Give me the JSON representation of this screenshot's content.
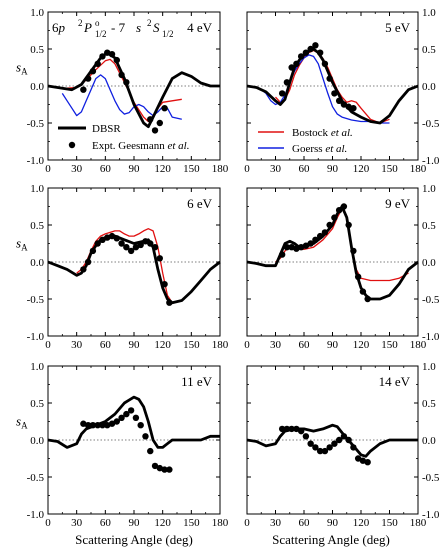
{
  "colors": {
    "dbsr": "#000000",
    "bostock": "#e01010",
    "goerss": "#1020e0",
    "expt": "#000000",
    "zero_line": "#555555"
  },
  "figure": {
    "transition": {
      "part_a": "6",
      "part_b": "p",
      "part_c": "2",
      "part_d": "P",
      "part_e": "o",
      "part_f": "1/2",
      "part_g": "- 7",
      "part_h": "s",
      "part_i": "2",
      "part_j": "S",
      "part_k": "1/2"
    },
    "xlabel": "Scattering Angle (deg)",
    "ylabel_main": "s",
    "ylabel_sub": "A",
    "legend": {
      "dbsr": "DBSR",
      "expt": "Expt. Geesmann",
      "expt_etal": "et al.",
      "bostock": "Bostock",
      "bostock_etal": "et al.",
      "goerss": "Goerss",
      "goerss_etal": "et al."
    }
  },
  "chart_data": [
    {
      "type": "line",
      "energy_label": "4 eV",
      "xlim": [
        0,
        180
      ],
      "ylim": [
        -1.0,
        1.0
      ],
      "xticks": [
        "0",
        "30",
        "60",
        "90",
        "120",
        "150",
        "180"
      ],
      "yticks": [
        "-1.0",
        "-0.5",
        "0.0",
        "0.5",
        "1.0"
      ],
      "series": [
        {
          "name": "DBSR",
          "x": [
            0,
            15,
            25,
            35,
            45,
            55,
            62,
            70,
            80,
            90,
            100,
            105,
            110,
            120,
            130,
            140,
            150,
            160,
            170,
            180
          ],
          "y": [
            0,
            -0.03,
            -0.05,
            0.02,
            0.2,
            0.38,
            0.45,
            0.38,
            0.1,
            -0.25,
            -0.5,
            -0.55,
            -0.42,
            -0.15,
            0.1,
            0.18,
            0.13,
            0.04,
            0.0,
            0.0
          ]
        },
        {
          "name": "Bostock et al.",
          "x": [
            20,
            30,
            40,
            50,
            60,
            65,
            70,
            80,
            90,
            100,
            105,
            110,
            115,
            120,
            130,
            140
          ],
          "y": [
            -0.03,
            -0.02,
            0.08,
            0.22,
            0.34,
            0.36,
            0.3,
            0.05,
            -0.22,
            -0.42,
            -0.48,
            -0.4,
            -0.3,
            -0.22,
            -0.2,
            -0.18
          ]
        },
        {
          "name": "Goerss et al.",
          "x": [
            15,
            20,
            25,
            30,
            35,
            40,
            45,
            50,
            55,
            60,
            65,
            70,
            75,
            80,
            85,
            90,
            95,
            100,
            105,
            110,
            115,
            120,
            125,
            130,
            140
          ],
          "y": [
            -0.1,
            -0.2,
            -0.3,
            -0.4,
            -0.35,
            -0.2,
            -0.05,
            0.1,
            0.15,
            0.1,
            -0.05,
            -0.2,
            -0.32,
            -0.38,
            -0.36,
            -0.28,
            -0.25,
            -0.28,
            -0.35,
            -0.4,
            -0.35,
            -0.28,
            -0.3,
            -0.42,
            -0.45
          ]
        },
        {
          "name": "Expt. Geesmann et al.",
          "points": true,
          "x": [
            37,
            42,
            47,
            52,
            57,
            62,
            67,
            72,
            77,
            82,
            107,
            112,
            117,
            122
          ],
          "y": [
            -0.05,
            0.1,
            0.2,
            0.3,
            0.4,
            0.45,
            0.43,
            0.35,
            0.15,
            0.05,
            -0.45,
            -0.6,
            -0.5,
            -0.3
          ]
        }
      ]
    },
    {
      "type": "line",
      "energy_label": "5 eV",
      "xlim": [
        0,
        180
      ],
      "ylim": [
        -1.0,
        1.0
      ],
      "xticks": [
        "0",
        "30",
        "60",
        "90",
        "120",
        "150",
        "180"
      ],
      "yticks": [
        "-1.0",
        "-0.5",
        "0.0",
        "0.5",
        "1.0"
      ],
      "series": [
        {
          "name": "DBSR",
          "x": [
            0,
            10,
            20,
            30,
            35,
            40,
            45,
            50,
            55,
            60,
            65,
            70,
            75,
            80,
            85,
            90,
            100,
            110,
            120,
            130,
            140,
            150,
            160,
            170,
            180
          ],
          "y": [
            0,
            -0.02,
            -0.08,
            -0.2,
            -0.25,
            -0.18,
            0.05,
            0.25,
            0.35,
            0.42,
            0.47,
            0.5,
            0.45,
            0.35,
            0.2,
            0.05,
            -0.2,
            -0.35,
            -0.42,
            -0.48,
            -0.5,
            -0.4,
            -0.2,
            -0.05,
            0.0
          ]
        },
        {
          "name": "Bostock et al.",
          "x": [
            30,
            35,
            40,
            45,
            50,
            55,
            60,
            65,
            70,
            75,
            80,
            85,
            90,
            95,
            100,
            105,
            110,
            115,
            120,
            130,
            140,
            150
          ],
          "y": [
            -0.15,
            -0.22,
            -0.18,
            -0.05,
            0.15,
            0.28,
            0.38,
            0.45,
            0.48,
            0.45,
            0.37,
            0.25,
            0.1,
            -0.05,
            -0.15,
            -0.22,
            -0.2,
            -0.22,
            -0.3,
            -0.45,
            -0.5,
            -0.45
          ]
        },
        {
          "name": "Goerss et al.",
          "x": [
            15,
            20,
            25,
            30,
            35,
            40,
            45,
            50,
            55,
            60,
            65,
            70,
            75,
            80,
            85,
            90,
            95,
            100,
            110,
            120,
            130,
            140,
            150
          ],
          "y": [
            -0.05,
            -0.1,
            -0.2,
            -0.25,
            -0.22,
            -0.12,
            0.05,
            0.2,
            0.3,
            0.38,
            0.42,
            0.4,
            0.3,
            0.1,
            -0.1,
            -0.28,
            -0.38,
            -0.42,
            -0.46,
            -0.48,
            -0.48,
            -0.5,
            -0.5
          ]
        },
        {
          "name": "Expt. Geesmann et al.",
          "points": true,
          "x": [
            37,
            42,
            47,
            52,
            57,
            62,
            67,
            72,
            77,
            82,
            87,
            92,
            97,
            102,
            107,
            112
          ],
          "y": [
            -0.1,
            0.05,
            0.25,
            0.3,
            0.4,
            0.45,
            0.5,
            0.55,
            0.45,
            0.3,
            0.1,
            -0.1,
            -0.2,
            -0.25,
            -0.28,
            -0.3
          ]
        }
      ]
    },
    {
      "type": "line",
      "energy_label": "6 eV",
      "xlim": [
        0,
        180
      ],
      "ylim": [
        -1.0,
        1.0
      ],
      "xticks": [
        "0",
        "30",
        "60",
        "90",
        "120",
        "150",
        "180"
      ],
      "yticks": [
        "-1.0",
        "-0.5",
        "0.0",
        "0.5",
        "1.0"
      ],
      "series": [
        {
          "name": "DBSR",
          "x": [
            0,
            10,
            20,
            30,
            35,
            40,
            45,
            50,
            55,
            60,
            70,
            80,
            90,
            100,
            105,
            110,
            115,
            120,
            125,
            130,
            140,
            150,
            160,
            170,
            180
          ],
          "y": [
            0,
            -0.05,
            -0.1,
            -0.18,
            -0.15,
            -0.05,
            0.12,
            0.22,
            0.3,
            0.33,
            0.35,
            0.3,
            0.25,
            0.28,
            0.3,
            0.2,
            -0.1,
            -0.35,
            -0.5,
            -0.55,
            -0.52,
            -0.4,
            -0.25,
            -0.1,
            0.0
          ]
        },
        {
          "name": "Bostock et al.",
          "x": [
            30,
            35,
            40,
            45,
            50,
            55,
            60,
            65,
            70,
            75,
            80,
            85,
            90,
            95,
            100,
            105,
            110,
            115,
            120,
            125,
            130,
            140,
            150
          ],
          "y": [
            -0.15,
            -0.1,
            0.0,
            0.15,
            0.28,
            0.35,
            0.38,
            0.4,
            0.42,
            0.42,
            0.38,
            0.35,
            0.35,
            0.38,
            0.42,
            0.45,
            0.42,
            0.2,
            -0.15,
            -0.45,
            -0.55,
            -0.52,
            -0.4
          ]
        },
        {
          "name": "Expt. Geesmann et al.",
          "points": true,
          "x": [
            37,
            42,
            47,
            52,
            57,
            62,
            67,
            72,
            77,
            82,
            87,
            92,
            97,
            102,
            107,
            112,
            117,
            122,
            127
          ],
          "y": [
            -0.1,
            0.0,
            0.15,
            0.25,
            0.3,
            0.33,
            0.35,
            0.32,
            0.25,
            0.2,
            0.15,
            0.2,
            0.23,
            0.28,
            0.25,
            0.2,
            0.05,
            -0.3,
            -0.55
          ]
        }
      ]
    },
    {
      "type": "line",
      "energy_label": "9 eV",
      "xlim": [
        0,
        180
      ],
      "ylim": [
        -1.0,
        1.0
      ],
      "xticks": [
        "0",
        "30",
        "60",
        "90",
        "120",
        "150",
        "180"
      ],
      "yticks": [
        "-1.0",
        "-0.5",
        "0.0",
        "0.5",
        "1.0"
      ],
      "series": [
        {
          "name": "DBSR",
          "x": [
            0,
            10,
            20,
            30,
            35,
            40,
            45,
            50,
            55,
            60,
            70,
            80,
            90,
            95,
            100,
            105,
            110,
            115,
            120,
            125,
            130,
            140,
            150,
            160,
            170,
            180
          ],
          "y": [
            0,
            -0.02,
            -0.05,
            -0.05,
            0.1,
            0.25,
            0.28,
            0.25,
            0.2,
            0.2,
            0.25,
            0.35,
            0.5,
            0.65,
            0.75,
            0.6,
            0.2,
            -0.15,
            -0.35,
            -0.45,
            -0.5,
            -0.5,
            -0.45,
            -0.3,
            -0.1,
            0.0
          ]
        },
        {
          "name": "Bostock et al.",
          "x": [
            30,
            35,
            40,
            45,
            50,
            55,
            60,
            70,
            80,
            90,
            95,
            100,
            105,
            110,
            115,
            120,
            130,
            140,
            150,
            160,
            170
          ],
          "y": [
            0.0,
            0.05,
            0.15,
            0.2,
            0.2,
            0.18,
            0.17,
            0.2,
            0.3,
            0.45,
            0.6,
            0.72,
            0.6,
            0.2,
            -0.1,
            -0.22,
            -0.25,
            -0.25,
            -0.25,
            -0.22,
            -0.15
          ]
        },
        {
          "name": "Expt. Geesmann et al.",
          "points": true,
          "x": [
            37,
            42,
            47,
            52,
            57,
            62,
            67,
            72,
            77,
            82,
            87,
            92,
            97,
            102,
            107,
            112,
            117,
            122,
            127
          ],
          "y": [
            0.1,
            0.2,
            0.2,
            0.18,
            0.2,
            0.22,
            0.25,
            0.3,
            0.35,
            0.4,
            0.5,
            0.6,
            0.7,
            0.75,
            0.5,
            0.15,
            -0.2,
            -0.4,
            -0.5
          ]
        }
      ]
    },
    {
      "type": "line",
      "energy_label": "11 eV",
      "xlim": [
        0,
        180
      ],
      "ylim": [
        -1.0,
        1.0
      ],
      "xticks": [
        "0",
        "30",
        "60",
        "90",
        "120",
        "150",
        "180"
      ],
      "yticks": [
        "-1.0",
        "-0.5",
        "0.0",
        "0.5",
        "1.0"
      ],
      "series": [
        {
          "name": "DBSR",
          "x": [
            0,
            10,
            20,
            30,
            35,
            40,
            50,
            60,
            70,
            80,
            90,
            95,
            100,
            105,
            110,
            115,
            120,
            125,
            130,
            140,
            150,
            160,
            170,
            180
          ],
          "y": [
            0,
            -0.02,
            -0.1,
            -0.05,
            0.08,
            0.15,
            0.2,
            0.25,
            0.35,
            0.5,
            0.58,
            0.55,
            0.45,
            0.25,
            0.0,
            -0.1,
            -0.1,
            -0.05,
            0.0,
            0.0,
            0.0,
            0.0,
            0.05,
            0.05
          ]
        },
        {
          "name": "Expt. Geesmann et al.",
          "points": true,
          "x": [
            37,
            42,
            47,
            52,
            57,
            62,
            67,
            72,
            77,
            82,
            87,
            92,
            97,
            102,
            107,
            112,
            117,
            122,
            127
          ],
          "y": [
            0.22,
            0.2,
            0.2,
            0.2,
            0.2,
            0.2,
            0.22,
            0.25,
            0.3,
            0.35,
            0.4,
            0.3,
            0.2,
            0.05,
            -0.15,
            -0.35,
            -0.38,
            -0.4,
            -0.4
          ]
        }
      ]
    },
    {
      "type": "line",
      "energy_label": "14 eV",
      "xlim": [
        0,
        180
      ],
      "ylim": [
        -1.0,
        1.0
      ],
      "xticks": [
        "0",
        "30",
        "60",
        "90",
        "120",
        "150",
        "180"
      ],
      "yticks": [
        "-1.0",
        "-0.5",
        "0.0",
        "0.5",
        "1.0"
      ],
      "series": [
        {
          "name": "DBSR",
          "x": [
            0,
            10,
            20,
            30,
            35,
            40,
            50,
            60,
            70,
            80,
            90,
            95,
            100,
            110,
            120,
            125,
            130,
            140,
            150,
            160,
            170,
            180
          ],
          "y": [
            0,
            -0.02,
            -0.08,
            -0.05,
            0.05,
            0.12,
            0.15,
            0.15,
            0.12,
            0.15,
            0.2,
            0.18,
            0.1,
            -0.05,
            -0.2,
            -0.22,
            -0.15,
            -0.05,
            0.0,
            0.0,
            0.0,
            0.0
          ]
        },
        {
          "name": "Expt. Geesmann et al.",
          "points": true,
          "x": [
            37,
            42,
            47,
            52,
            57,
            62,
            67,
            72,
            77,
            82,
            87,
            92,
            97,
            102,
            107,
            112,
            117,
            122,
            127
          ],
          "y": [
            0.15,
            0.15,
            0.15,
            0.15,
            0.12,
            0.05,
            -0.05,
            -0.1,
            -0.15,
            -0.15,
            -0.1,
            -0.05,
            0.0,
            0.05,
            0.0,
            -0.1,
            -0.25,
            -0.28,
            -0.3
          ]
        }
      ]
    }
  ]
}
